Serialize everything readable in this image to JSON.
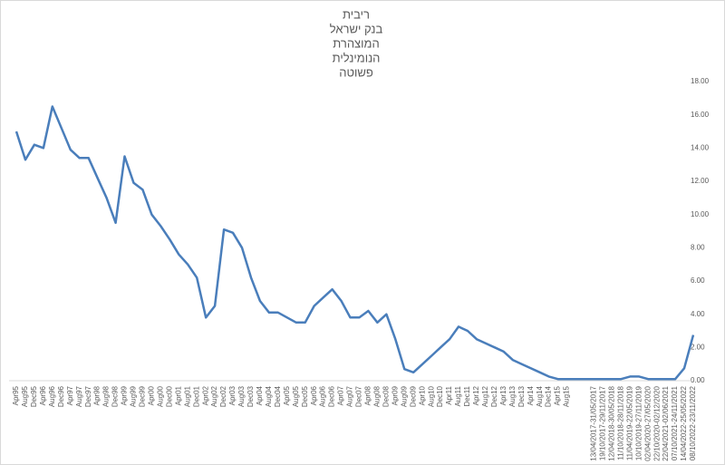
{
  "chart_data": {
    "type": "line",
    "title": [
      "ריבית",
      "בנק ישראל",
      "המוצהרת",
      "הנומינלית",
      "פשוטה"
    ],
    "categories": [
      "Apr95",
      "Aug95",
      "Dec95",
      "Apr96",
      "Aug96",
      "Dec96",
      "Apr97",
      "Aug97",
      "Dec97",
      "Apr98",
      "Aug98",
      "Dec98",
      "Apr99",
      "Aug99",
      "Dec99",
      "Apr00",
      "Aug00",
      "Dec00",
      "Apr01",
      "Aug01",
      "Dec01",
      "Apr02",
      "Aug02",
      "Dec02",
      "Apr03",
      "Aug03",
      "Dec03",
      "Apr04",
      "Aug04",
      "Dec04",
      "Apr05",
      "Aug05",
      "Dec05",
      "Apr06",
      "Aug06",
      "Dec06",
      "Apr07",
      "Aug07",
      "Dec07",
      "Apr08",
      "Aug08",
      "Dec08",
      "Apr09",
      "Aug09",
      "Dec09",
      "Apr10",
      "Aug10",
      "Dec10",
      "Apr11",
      "Aug11",
      "Dec11",
      "Apr12",
      "Aug12",
      "Dec12",
      "Apr13",
      "Aug13",
      "Dec13",
      "Apr14",
      "Aug14",
      "Dec14",
      "Apr15",
      "Aug15",
      null,
      null,
      "13/04/2017-31/05/2017",
      "19/10/2017-29/11/2017",
      "12/04/2018-30/05/2018",
      "11/10/2018-28/11/2018",
      "11/04/2019-22/05/2019",
      "10/10/2019-27/11/2019",
      "02/04/2020-27/05/2020",
      "22/10/2020-02/12/2020",
      "22/04/2021-02/06/2021",
      "07/10/2021-24/11/2021",
      "14/04/2022-25/05/2022",
      "08/10/2022-23/11/2022"
    ],
    "series": [
      {
        "color": "#4a7ebb",
        "values": [
          15.0,
          13.3,
          14.2,
          14.0,
          16.5,
          15.2,
          13.9,
          13.4,
          13.4,
          12.2,
          11.0,
          9.5,
          13.5,
          11.9,
          11.5,
          10.0,
          9.3,
          8.5,
          7.6,
          7.0,
          6.2,
          3.8,
          4.5,
          9.1,
          8.9,
          8.0,
          6.2,
          4.8,
          4.1,
          4.1,
          3.8,
          3.5,
          3.5,
          4.5,
          5.0,
          5.5,
          4.8,
          3.8,
          3.8,
          4.2,
          3.5,
          4.0,
          2.5,
          0.7,
          0.5,
          1.0,
          1.5,
          2.0,
          2.5,
          3.25,
          3.0,
          2.5,
          2.25,
          2.0,
          1.75,
          1.25,
          1.0,
          0.75,
          0.5,
          0.25,
          0.1,
          0.1,
          0.1,
          0.1,
          0.1,
          0.1,
          0.1,
          0.1,
          0.25,
          0.25,
          0.1,
          0.1,
          0.1,
          0.1,
          0.75,
          2.75
        ]
      }
    ],
    "ylim": [
      0,
      18
    ],
    "yticks": [
      {
        "value": 0,
        "label": "0.00"
      },
      {
        "value": 2,
        "label": "2.00"
      },
      {
        "value": 4,
        "label": "4.00"
      },
      {
        "value": 6,
        "label": "6.00"
      },
      {
        "value": 8,
        "label": "8.00"
      },
      {
        "value": 10,
        "label": "10.00"
      },
      {
        "value": 12,
        "label": "12.00"
      },
      {
        "value": 14,
        "label": "14.00"
      },
      {
        "value": 16,
        "label": "16.00"
      },
      {
        "value": 18,
        "label": "18.00"
      }
    ],
    "grid": false
  }
}
